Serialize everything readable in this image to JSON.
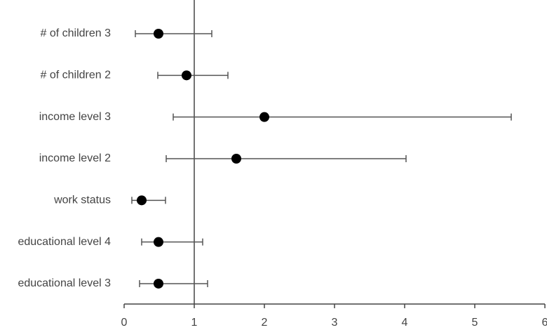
{
  "chart_data": {
    "type": "forest",
    "categories": [
      "# of children 3",
      "# of children 2",
      "income level 3",
      "income level 2",
      "work  status",
      "educational level 4",
      "educational level 3"
    ],
    "values": [
      0.49,
      0.89,
      2.0,
      1.6,
      0.25,
      0.49,
      0.49
    ],
    "lower": [
      0.16,
      0.48,
      0.7,
      0.6,
      0.11,
      0.25,
      0.22
    ],
    "upper": [
      1.25,
      1.48,
      5.52,
      4.02,
      0.59,
      1.12,
      1.19
    ],
    "xlim": [
      0,
      6
    ],
    "xticks": [
      0,
      1,
      2,
      3,
      4,
      5,
      6
    ],
    "reference_line": 1,
    "color": "#000000",
    "whisker_color": "#555555"
  }
}
